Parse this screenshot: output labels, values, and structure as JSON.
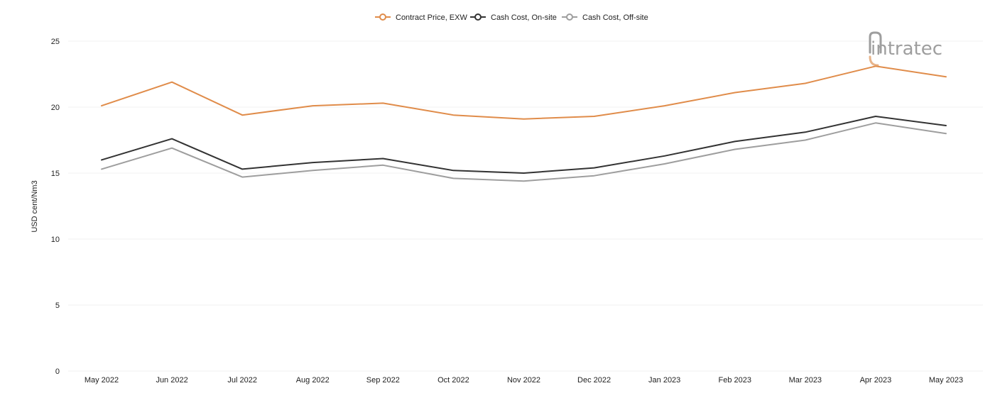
{
  "chart_data": {
    "type": "line",
    "title": "",
    "xlabel": "",
    "ylabel": "USD cent/Nm3",
    "ylim": [
      0,
      25
    ],
    "yticks": [
      0,
      5,
      10,
      15,
      20,
      25
    ],
    "grid": true,
    "legend_position": "top-center",
    "categories": [
      "May 2022",
      "Jun 2022",
      "Jul 2022",
      "Aug 2022",
      "Sep 2022",
      "Oct 2022",
      "Nov 2022",
      "Dec 2022",
      "Jan 2023",
      "Feb 2023",
      "Mar 2023",
      "Apr 2023",
      "May 2023"
    ],
    "series": [
      {
        "name": "Contract Price, EXW",
        "color": "#e08c4a",
        "values": [
          20.1,
          21.9,
          19.4,
          20.1,
          20.3,
          19.4,
          19.1,
          19.3,
          20.1,
          21.1,
          21.8,
          23.1,
          22.3
        ]
      },
      {
        "name": "Cash Cost, On-site",
        "color": "#333333",
        "values": [
          16.0,
          17.6,
          15.3,
          15.8,
          16.1,
          15.2,
          15.0,
          15.4,
          16.3,
          17.4,
          18.1,
          19.3,
          18.6
        ]
      },
      {
        "name": "Cash Cost, Off-site",
        "color": "#9e9e9e",
        "values": [
          15.3,
          16.9,
          14.7,
          15.2,
          15.6,
          14.6,
          14.4,
          14.8,
          15.7,
          16.8,
          17.5,
          18.8,
          18.0
        ]
      }
    ]
  },
  "watermark": {
    "text": "intratec"
  }
}
